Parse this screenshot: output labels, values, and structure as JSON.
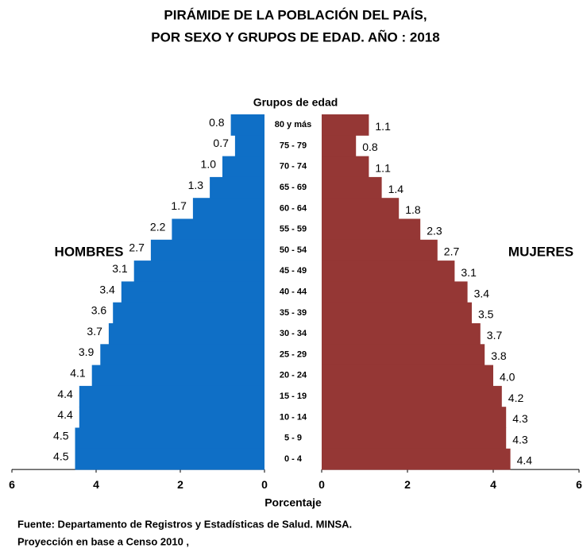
{
  "chart_data": {
    "type": "pyramid",
    "title": [
      "PIRÁMIDE DE LA POBLACIÓN DEL PAÍS,",
      "POR SEXO Y GRUPOS DE EDAD. AÑO :  2018"
    ],
    "category_axis_label": "Grupos de edad",
    "x_axis_label": "Porcentaje",
    "categories": [
      "80 y más",
      "75 - 79",
      "70 - 74",
      "65 - 69",
      "60 - 64",
      "55 - 59",
      "50 - 54",
      "45 - 49",
      "40 - 44",
      "35 - 39",
      "30 - 34",
      "25 - 29",
      "20 - 24",
      "15 - 19",
      "10 - 14",
      "5 - 9",
      "0 - 4"
    ],
    "series": [
      {
        "name": "HOMBRES",
        "side": "left",
        "color": "#0f6fc6",
        "values": [
          0.8,
          0.7,
          1.0,
          1.3,
          1.7,
          2.2,
          2.7,
          3.1,
          3.4,
          3.6,
          3.7,
          3.9,
          4.1,
          4.4,
          4.4,
          4.5,
          4.5
        ],
        "value_labels": [
          "0.8",
          "0.7",
          "1.0",
          "1.3",
          "1.7",
          "2.2",
          "2.7",
          "3.1",
          "3.4",
          "3.6",
          "3.7",
          "3.9",
          "4.1",
          "4.4",
          "4.4",
          "4.5",
          "4.5"
        ]
      },
      {
        "name": "MUJERES",
        "side": "right",
        "color": "#953735",
        "values": [
          1.1,
          0.8,
          1.1,
          1.4,
          1.8,
          2.3,
          2.7,
          3.1,
          3.4,
          3.5,
          3.7,
          3.8,
          4.0,
          4.2,
          4.3,
          4.3,
          4.4
        ],
        "value_labels": [
          "1.1",
          "0.8",
          "1.1",
          "1.4",
          "1.8",
          "2.3",
          "2.7",
          "3.1",
          "3.4",
          "3.5",
          "3.7",
          "3.8",
          "4.0",
          "4.2",
          "4.3",
          "4.3",
          "4.4"
        ]
      }
    ],
    "xlim": [
      0,
      6
    ],
    "xticks": [
      0,
      2,
      4,
      6
    ],
    "source": [
      "Fuente: Departamento de Registros y Estadísticas de Salud. MINSA.",
      "Proyección en base a Censo  2010 ,"
    ]
  }
}
